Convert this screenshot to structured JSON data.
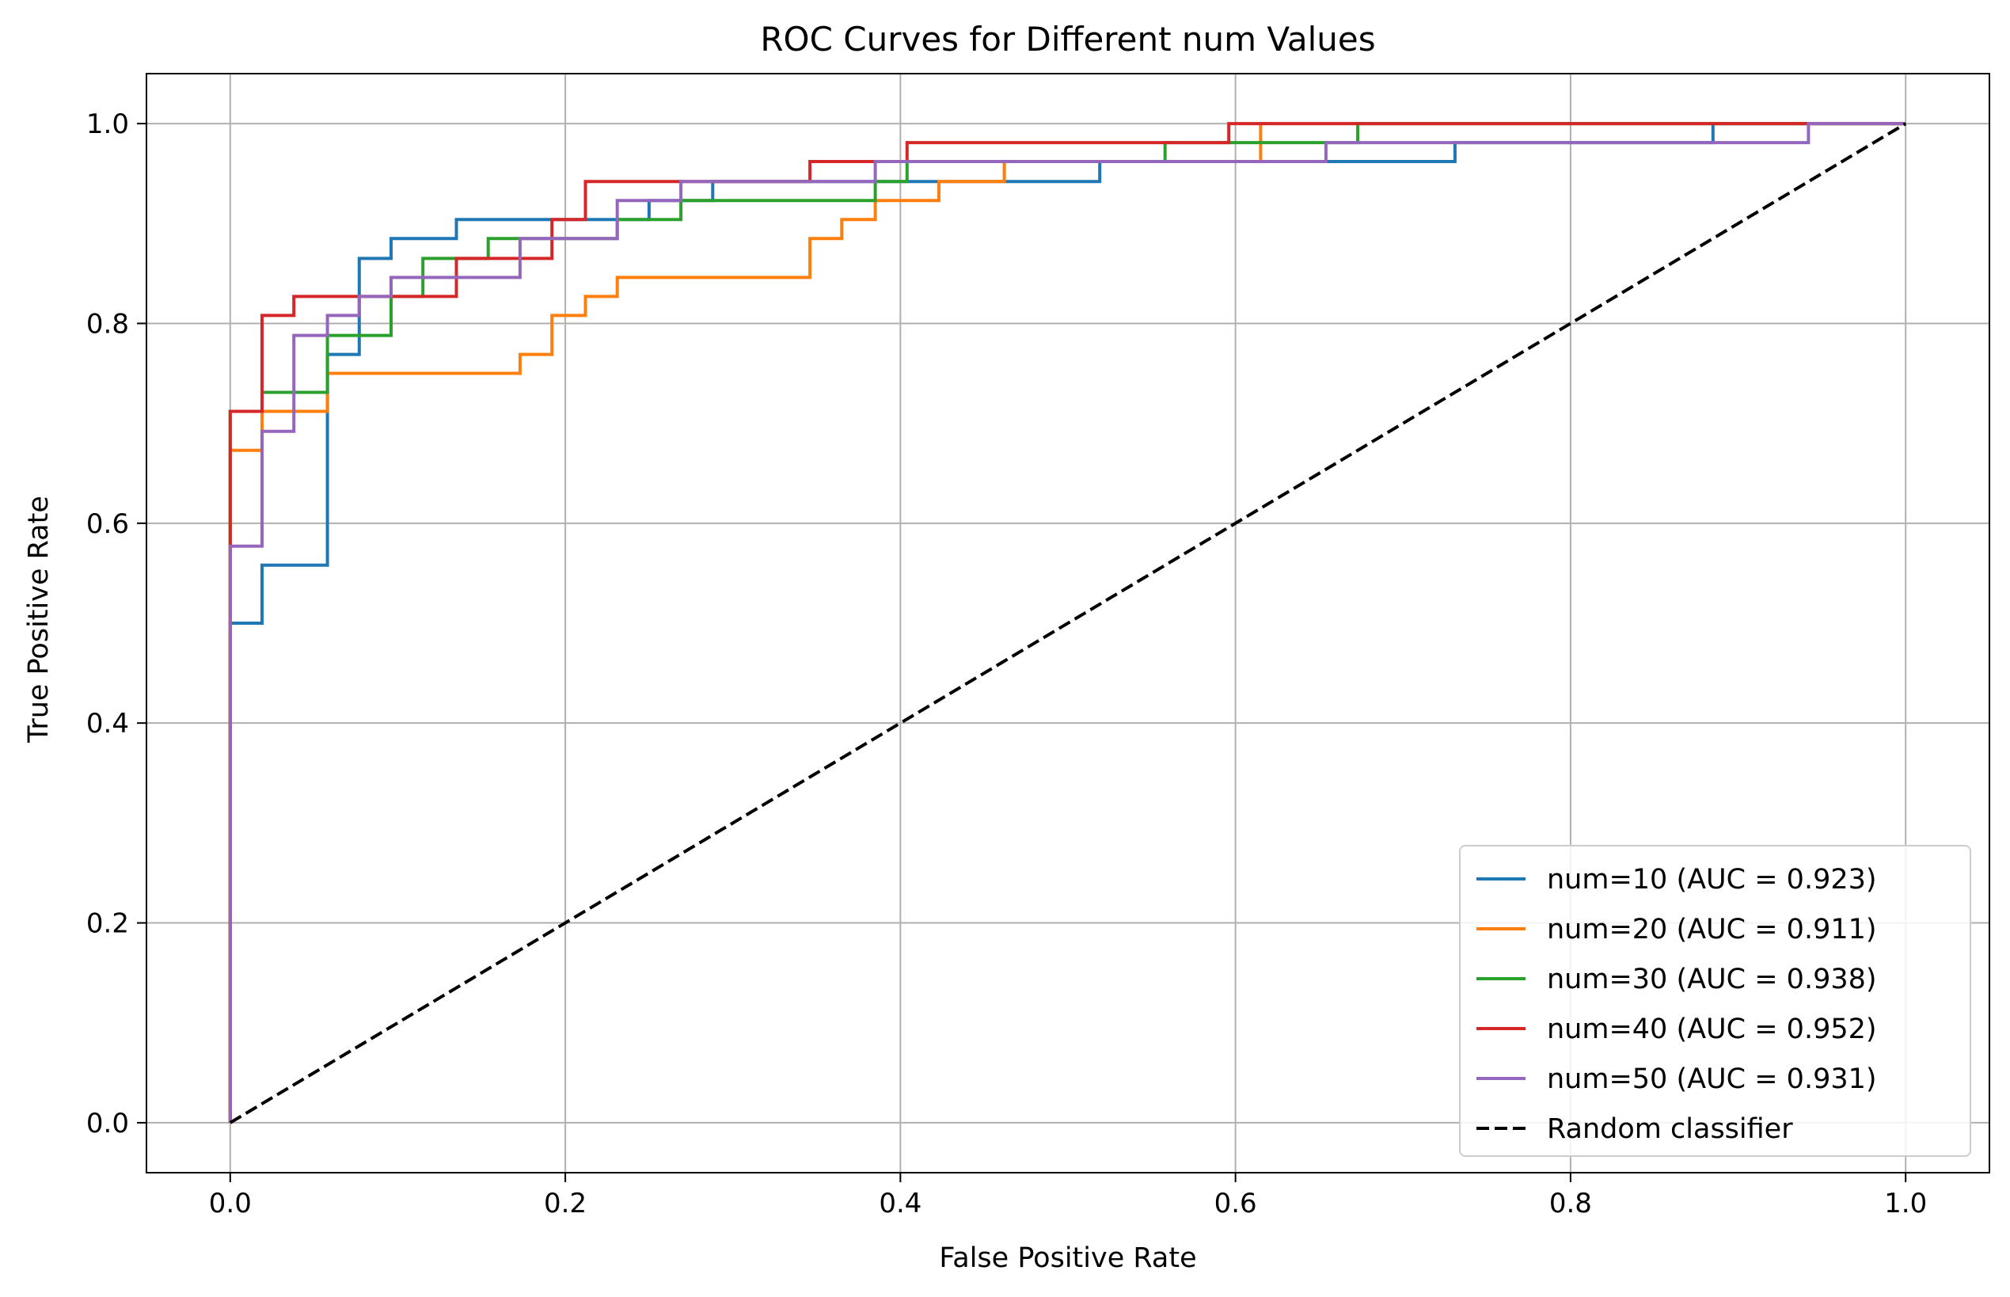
{
  "chart_data": {
    "type": "line",
    "title": "ROC Curves for Different num Values",
    "xlabel": "False Positive Rate",
    "ylabel": "True Positive Rate",
    "xlim": [
      -0.05,
      1.05
    ],
    "ylim": [
      -0.05,
      1.05
    ],
    "xticks": [
      0.0,
      0.2,
      0.4,
      0.6,
      0.8,
      1.0
    ],
    "xtick_labels": [
      "0.0",
      "0.2",
      "0.4",
      "0.6",
      "0.8",
      "1.0"
    ],
    "yticks": [
      0.0,
      0.2,
      0.4,
      0.6,
      0.8,
      1.0
    ],
    "ytick_labels": [
      "0.0",
      "0.2",
      "0.4",
      "0.6",
      "0.8",
      "1.0"
    ],
    "grid": true,
    "legend_position": "lower-right",
    "series": [
      {
        "name": "num=10 (AUC = 0.923)",
        "color": "#1f77b4",
        "style": "solid",
        "x": [
          0,
          0,
          0.019,
          0.019,
          0.058,
          0.058,
          0.077,
          0.077,
          0.096,
          0.096,
          0.135,
          0.135,
          0.25,
          0.25,
          0.288,
          0.288,
          0.404,
          0.404,
          0.519,
          0.519,
          0.731,
          0.731,
          0.885,
          0.885,
          1.0
        ],
        "y": [
          0,
          0.5,
          0.5,
          0.558,
          0.558,
          0.769,
          0.769,
          0.865,
          0.865,
          0.885,
          0.885,
          0.904,
          0.904,
          0.923,
          0.923,
          0.942,
          0.942,
          0.942,
          0.942,
          0.962,
          0.962,
          0.981,
          0.981,
          1.0,
          1.0
        ]
      },
      {
        "name": "num=20 (AUC = 0.911)",
        "color": "#ff7f0e",
        "style": "solid",
        "x": [
          0,
          0,
          0.019,
          0.019,
          0.058,
          0.058,
          0.173,
          0.173,
          0.192,
          0.192,
          0.212,
          0.212,
          0.231,
          0.231,
          0.346,
          0.346,
          0.365,
          0.365,
          0.385,
          0.385,
          0.423,
          0.423,
          0.462,
          0.462,
          0.615,
          0.615,
          1.0
        ],
        "y": [
          0,
          0.673,
          0.673,
          0.712,
          0.712,
          0.75,
          0.75,
          0.769,
          0.769,
          0.808,
          0.808,
          0.827,
          0.827,
          0.846,
          0.846,
          0.885,
          0.885,
          0.904,
          0.904,
          0.923,
          0.923,
          0.942,
          0.942,
          0.962,
          0.962,
          1.0,
          1.0
        ]
      },
      {
        "name": "num=30 (AUC = 0.938)",
        "color": "#2ca02c",
        "style": "solid",
        "x": [
          0,
          0,
          0.019,
          0.019,
          0.058,
          0.058,
          0.096,
          0.096,
          0.115,
          0.115,
          0.154,
          0.154,
          0.231,
          0.231,
          0.269,
          0.269,
          0.385,
          0.385,
          0.404,
          0.404,
          0.558,
          0.558,
          0.673,
          0.673,
          1.0
        ],
        "y": [
          0,
          0.712,
          0.712,
          0.731,
          0.731,
          0.788,
          0.788,
          0.827,
          0.827,
          0.865,
          0.865,
          0.885,
          0.885,
          0.904,
          0.904,
          0.923,
          0.923,
          0.942,
          0.942,
          0.962,
          0.962,
          0.981,
          0.981,
          1.0,
          1.0
        ]
      },
      {
        "name": "num=40 (AUC = 0.952)",
        "color": "#d62728",
        "style": "solid",
        "x": [
          0,
          0,
          0.019,
          0.019,
          0.038,
          0.038,
          0.135,
          0.135,
          0.192,
          0.192,
          0.212,
          0.212,
          0.346,
          0.346,
          0.404,
          0.404,
          0.596,
          0.596,
          1.0
        ],
        "y": [
          0,
          0.712,
          0.712,
          0.808,
          0.808,
          0.827,
          0.827,
          0.865,
          0.865,
          0.904,
          0.904,
          0.942,
          0.942,
          0.962,
          0.962,
          0.981,
          0.981,
          1.0,
          1.0
        ]
      },
      {
        "name": "num=50 (AUC = 0.931)",
        "color": "#9467bd",
        "style": "solid",
        "x": [
          0,
          0,
          0.019,
          0.019,
          0.038,
          0.038,
          0.058,
          0.058,
          0.077,
          0.077,
          0.096,
          0.096,
          0.173,
          0.173,
          0.231,
          0.231,
          0.269,
          0.269,
          0.385,
          0.385,
          0.654,
          0.654,
          0.942,
          0.942,
          1.0
        ],
        "y": [
          0,
          0.577,
          0.577,
          0.692,
          0.692,
          0.788,
          0.788,
          0.808,
          0.808,
          0.827,
          0.827,
          0.846,
          0.846,
          0.885,
          0.885,
          0.923,
          0.923,
          0.942,
          0.942,
          0.962,
          0.962,
          0.981,
          0.981,
          1.0,
          1.0
        ]
      },
      {
        "name": "Random classifier",
        "color": "#000000",
        "style": "dashed",
        "x": [
          0,
          1
        ],
        "y": [
          0,
          1
        ]
      }
    ]
  }
}
